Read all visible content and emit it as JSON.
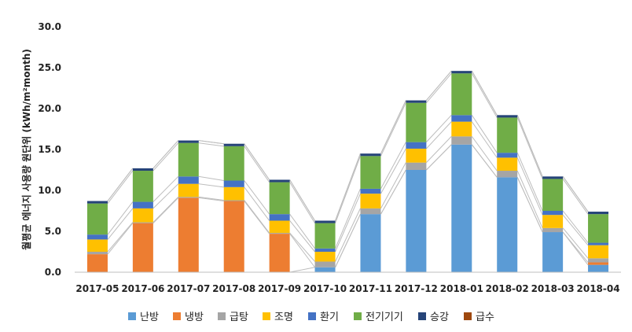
{
  "chart_data": {
    "type": "bar",
    "stacked": true,
    "ylabel": "월평균 에너지 사용량 원단위 (kWh/m²month)",
    "ylim": [
      0,
      30
    ],
    "yticks": [
      "0.0",
      "5.0",
      "10.0",
      "15.0",
      "20.0",
      "25.0",
      "30.0"
    ],
    "grid": false,
    "legend_position": "bottom",
    "categories": [
      "2017-05",
      "2017-06",
      "2017-07",
      "2017-08",
      "2017-09",
      "2017-10",
      "2017-11",
      "2017-12",
      "2018-01",
      "2018-02",
      "2018-03",
      "2018-04"
    ],
    "series": [
      {
        "name": "난방",
        "color": "#5b9bd5",
        "values": [
          0,
          0,
          0,
          0,
          0,
          0.6,
          7.1,
          12.5,
          15.6,
          11.6,
          4.9,
          0.9
        ]
      },
      {
        "name": "냉방",
        "color": "#ed7d31",
        "values": [
          2.2,
          6.0,
          9.1,
          8.7,
          4.7,
          0,
          0,
          0,
          0,
          0,
          0,
          0.3
        ]
      },
      {
        "name": "급탕",
        "color": "#a5a5a5",
        "values": [
          0.3,
          0.1,
          0.1,
          0.1,
          0.1,
          0.7,
          0.7,
          0.9,
          1.0,
          0.8,
          0.5,
          0.5
        ]
      },
      {
        "name": "조명",
        "color": "#ffc000",
        "values": [
          1.5,
          1.7,
          1.6,
          1.6,
          1.5,
          1.2,
          1.8,
          1.7,
          1.8,
          1.6,
          1.6,
          1.6
        ]
      },
      {
        "name": "환기",
        "color": "#4472c4",
        "values": [
          0.6,
          0.8,
          0.9,
          0.8,
          0.8,
          0.4,
          0.6,
          0.8,
          0.8,
          0.6,
          0.5,
          0.3
        ]
      },
      {
        "name": "전기기기",
        "color": "#70ad47",
        "values": [
          3.8,
          3.8,
          4.1,
          4.2,
          3.9,
          3.1,
          4.0,
          4.8,
          5.1,
          4.3,
          3.9,
          3.5
        ]
      },
      {
        "name": "승강",
        "color": "#264478",
        "values": [
          0.3,
          0.3,
          0.3,
          0.3,
          0.3,
          0.3,
          0.3,
          0.3,
          0.3,
          0.3,
          0.3,
          0.3
        ]
      },
      {
        "name": "급수",
        "color": "#9e480e",
        "values": [
          0,
          0,
          0,
          0,
          0,
          0,
          0,
          0,
          0,
          0,
          0,
          0
        ]
      }
    ]
  }
}
